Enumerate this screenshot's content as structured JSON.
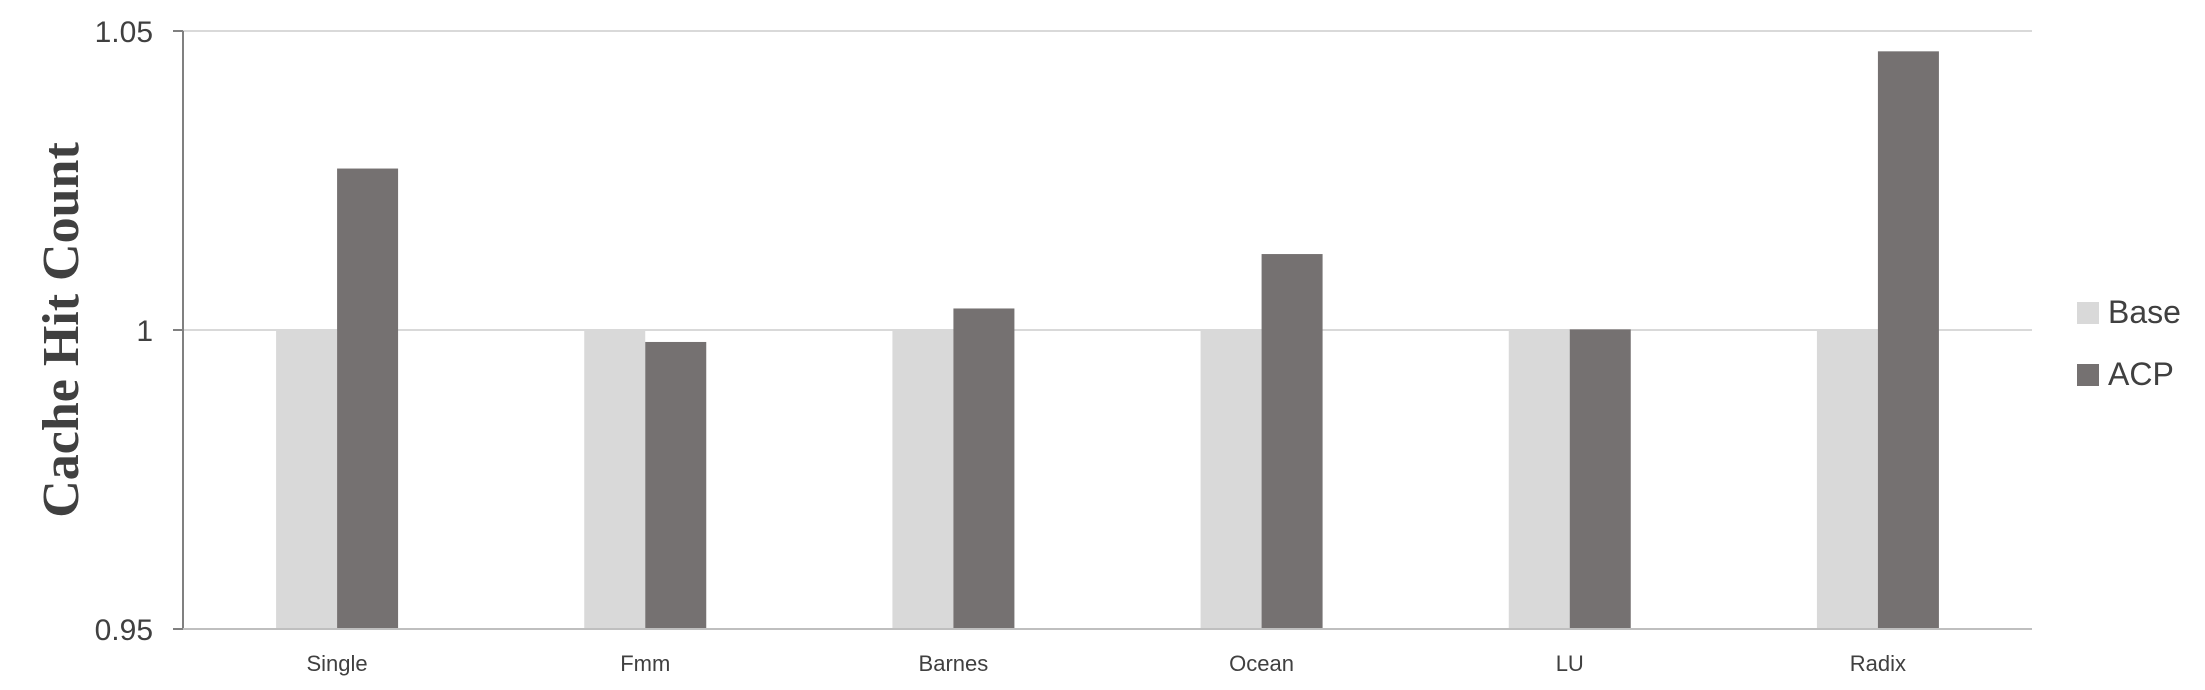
{
  "chart_data": {
    "type": "bar",
    "categories": [
      "Single",
      "Fmm",
      "Barnes",
      "Ocean",
      "LU",
      "Radix"
    ],
    "series": [
      {
        "name": "Base",
        "values": [
          1.0,
          1.0,
          1.0,
          1.0,
          1.0,
          1.0
        ],
        "color": "#d9d9d9"
      },
      {
        "name": "ACP",
        "values": [
          1.027,
          0.998,
          1.0036,
          1.0127,
          1.0001,
          1.0466
        ],
        "color": "#757171"
      }
    ],
    "title": "",
    "xlabel": "",
    "ylabel": "Cache Hit Count",
    "ylim": [
      0.95,
      1.05
    ],
    "yticks": [
      0.95,
      1,
      1.05
    ],
    "ytick_labels": [
      "0.95",
      "1",
      "1.05"
    ],
    "grid": "horizontal",
    "legend_position": "right"
  }
}
